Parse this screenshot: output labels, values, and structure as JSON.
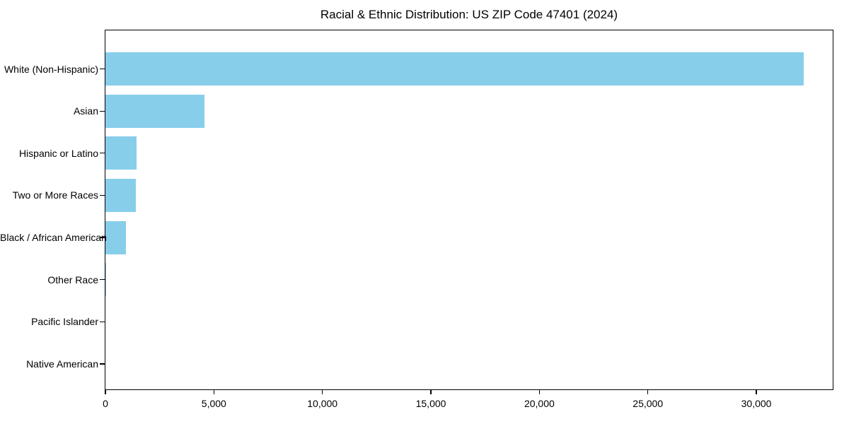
{
  "page": {
    "background_color": "#ffffff",
    "text_color": "#000000"
  },
  "chart_data": {
    "type": "bar",
    "orientation": "horizontal",
    "title": "Racial & Ethnic Distribution: US ZIP Code 47401 (2024)",
    "xlabel": "",
    "ylabel": "",
    "categories": [
      "White (Non-Hispanic)",
      "Asian",
      "Hispanic or Latino",
      "Two or More Races",
      "Black / African American",
      "Other Race",
      "Pacific Islander",
      "Native American"
    ],
    "values": [
      32180,
      4560,
      1420,
      1410,
      950,
      45,
      15,
      10
    ],
    "bar_color": "#87CEEB",
    "axis_color": "#000000",
    "xlim": [
      0,
      33520
    ],
    "xticks": [
      0,
      5000,
      10000,
      15000,
      20000,
      25000,
      30000
    ],
    "xtick_labels": [
      "0",
      "5,000",
      "10,000",
      "15,000",
      "20,000",
      "25,000",
      "30,000"
    ],
    "grid": false,
    "legend": null
  }
}
